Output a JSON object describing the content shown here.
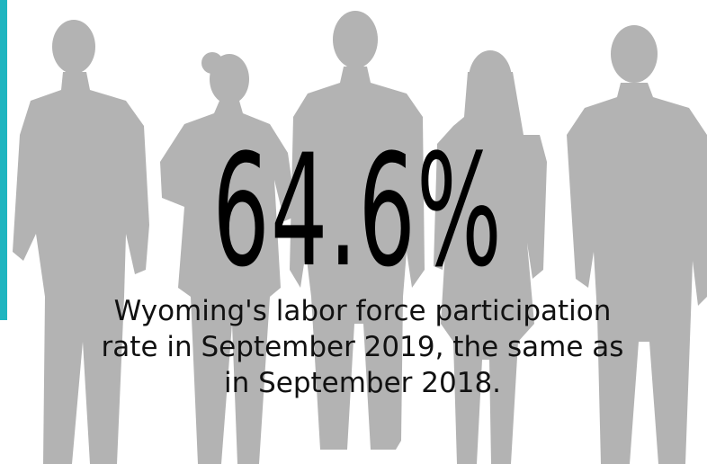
{
  "headline": "64.6%",
  "caption": "Wyoming's labor force participation rate in September 2019, the same as in September 2018."
}
